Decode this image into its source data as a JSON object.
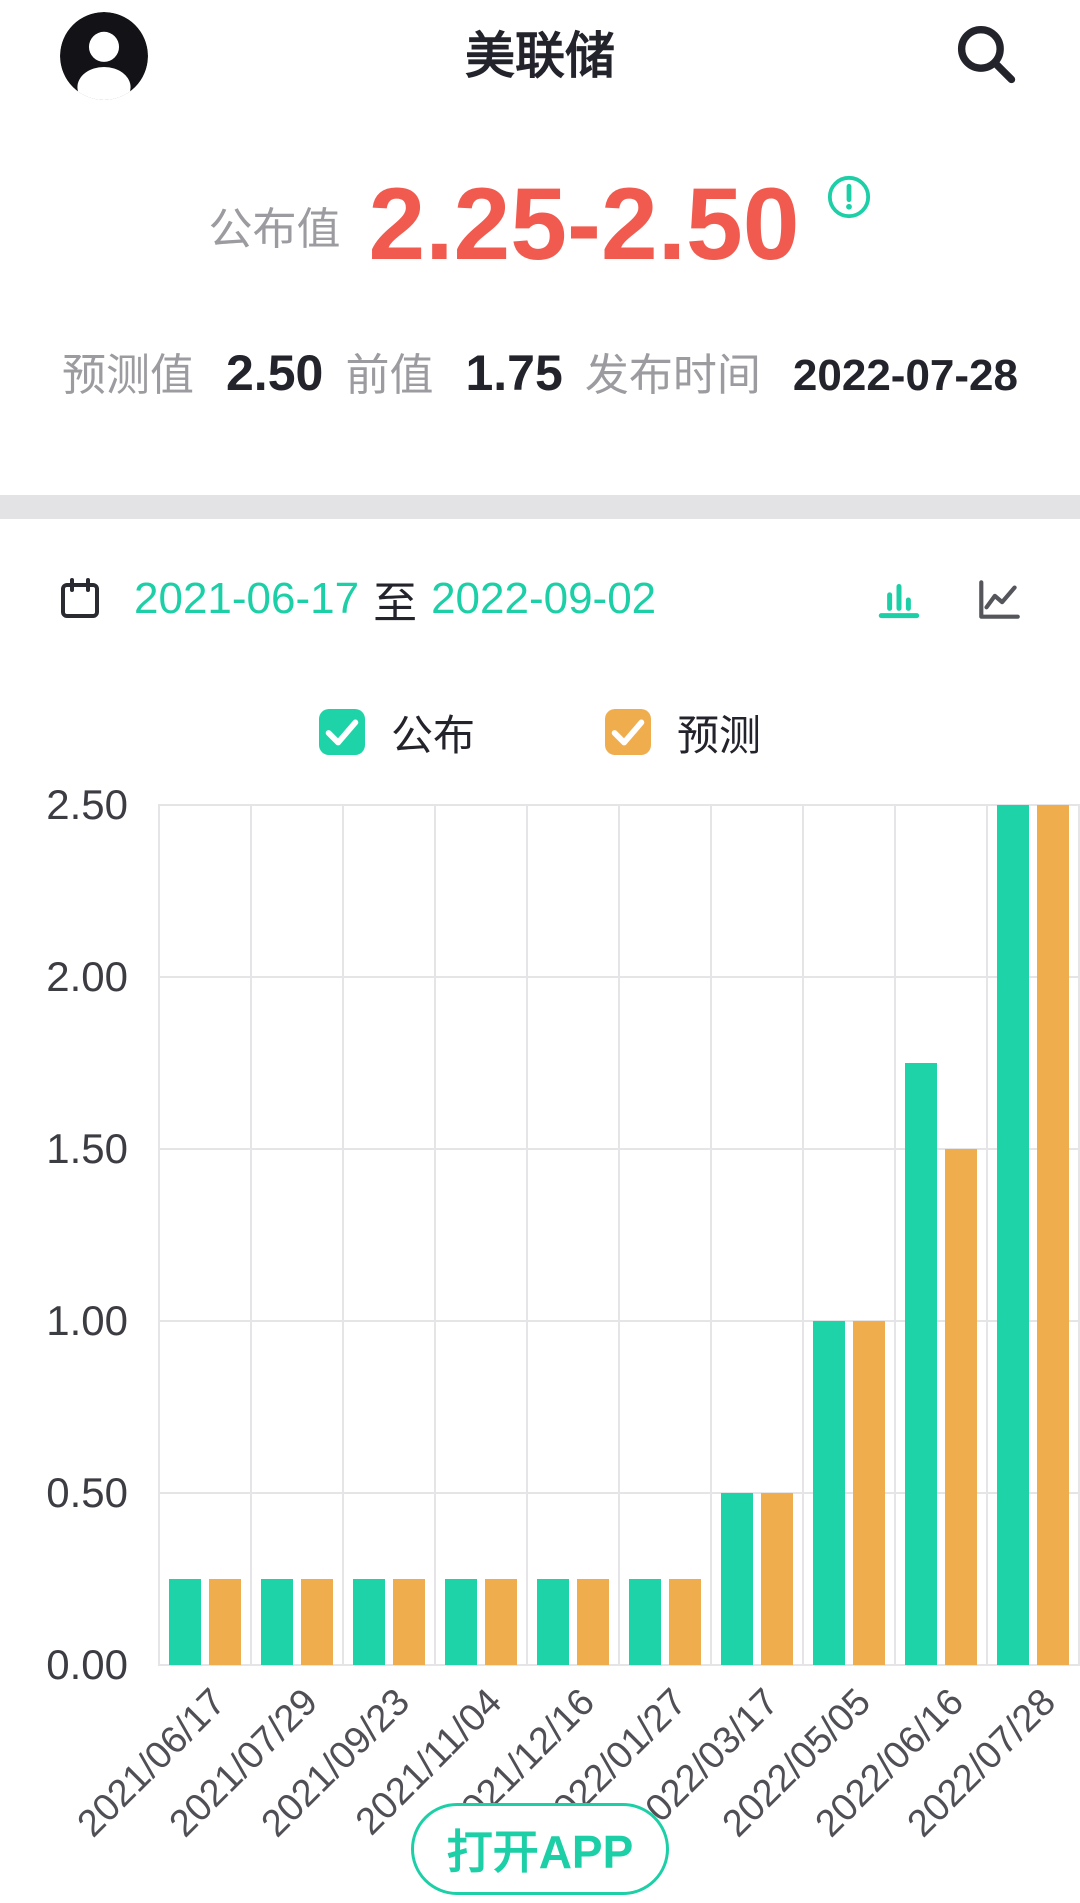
{
  "header": {
    "title": "美联储"
  },
  "summary": {
    "announced_label": "公布值",
    "announced_value": "2.25-2.50",
    "forecast_label": "预测值",
    "forecast_value": "2.50",
    "previous_label": "前值",
    "previous_value": "1.75",
    "release_label": "发布时间",
    "release_date": "2022-07-28"
  },
  "range": {
    "start": "2021-06-17",
    "separator": "至",
    "end": "2022-09-02"
  },
  "open_app_label": "打开APP",
  "colors": {
    "accent_teal": "#1DCFA6",
    "accent_orange": "#F0AD4E",
    "value_red": "#F15B4F",
    "grid": "#E5E5E8"
  },
  "icons": {
    "avatar": "person-silhouette",
    "search": "magnifier",
    "info": "circled-exclamation",
    "calendar": "calendar",
    "bar_chart_toggle": "bar-chart",
    "line_chart_toggle": "line-chart",
    "legend_check": "checkmark"
  },
  "chart_data": {
    "type": "bar",
    "title": "",
    "categories": [
      "2021/06/17",
      "2021/07/29",
      "2021/09/23",
      "2021/11/04",
      "2021/12/16",
      "2022/01/27",
      "2022/03/17",
      "2022/05/05",
      "2022/06/16",
      "2022/07/28"
    ],
    "series": [
      {
        "name": "公布",
        "color": "#1DD3A7",
        "values": [
          0.25,
          0.25,
          0.25,
          0.25,
          0.25,
          0.25,
          0.5,
          1.0,
          1.75,
          2.5
        ]
      },
      {
        "name": "预测",
        "color": "#F0AD4E",
        "values": [
          0.25,
          0.25,
          0.25,
          0.25,
          0.25,
          0.25,
          0.5,
          1.0,
          1.5,
          2.5
        ]
      }
    ],
    "xlabel": "",
    "ylabel": "",
    "ylim": [
      0,
      2.5
    ],
    "yticks": [
      "2.50",
      "2.00",
      "1.50",
      "1.00",
      "0.50",
      "0.00"
    ],
    "grid": true,
    "legend_position": "top"
  }
}
